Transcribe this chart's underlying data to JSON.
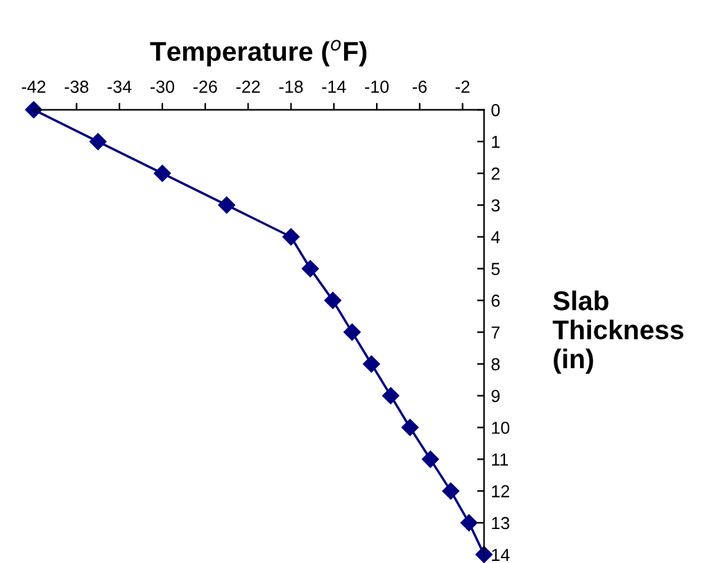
{
  "chart_data": {
    "type": "line",
    "xlabel": "Temperature ($^{o}$F)",
    "ylabel": "Slab\nThickness\n(in)",
    "series": [
      {
        "color": "#000080",
        "x": [
          -42,
          -36,
          -30,
          -24,
          -18,
          -16.2,
          -14.1,
          -12.3,
          -10.5,
          -8.7,
          -6.9,
          -5.0,
          -3.1,
          -1.4,
          0
        ],
        "values": [
          0,
          1,
          2,
          3,
          4,
          5,
          6,
          7,
          8,
          9,
          10,
          11,
          12,
          13,
          14
        ]
      }
    ],
    "xlim": [
      -42,
      0
    ],
    "xticks": [
      -42,
      -38,
      -34,
      -30,
      -26,
      -22,
      -18,
      -14,
      -10,
      -6,
      -2
    ],
    "ylim": [
      14,
      0
    ],
    "yticks": [
      0,
      1,
      2,
      3,
      4,
      5,
      6,
      7,
      8,
      9,
      10,
      11,
      12,
      13,
      14
    ],
    "marker": "diamond",
    "line_style": "solid",
    "grid": false
  }
}
